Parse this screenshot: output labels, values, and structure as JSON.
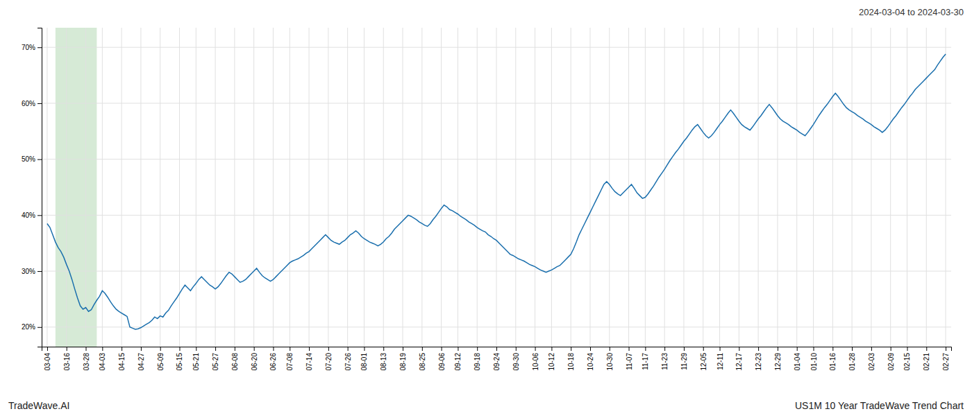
{
  "chart_data": {
    "type": "line",
    "title": "2024-03-04 to 2024-03-30",
    "annotations": [
      "TradeWave.AI",
      "US1M 10 Year TradeWave Trend Chart"
    ],
    "color": "#1a6fad",
    "grid": true,
    "ylim": [
      0.165,
      0.735
    ],
    "yticks": [
      {
        "value": 0.2,
        "label": "20%"
      },
      {
        "value": 0.3,
        "label": "30%"
      },
      {
        "value": 0.4,
        "label": "40%"
      },
      {
        "value": 0.5,
        "label": "50%"
      },
      {
        "value": 0.6,
        "label": "60%"
      },
      {
        "value": 0.7,
        "label": "70%"
      }
    ],
    "highlight": {
      "start": 3,
      "end": 18,
      "color": "#d6ead6"
    },
    "categories": [
      "03-04",
      null,
      null,
      null,
      null,
      null,
      null,
      "03-16",
      null,
      null,
      null,
      null,
      null,
      null,
      "03-28",
      null,
      null,
      null,
      null,
      null,
      "04-03",
      null,
      null,
      null,
      null,
      null,
      null,
      "04-15",
      null,
      null,
      null,
      null,
      null,
      null,
      "04-27",
      null,
      null,
      null,
      null,
      null,
      null,
      "05-09",
      null,
      null,
      null,
      null,
      null,
      null,
      "05-15",
      null,
      null,
      null,
      null,
      null,
      "05-21",
      null,
      null,
      null,
      null,
      null,
      null,
      "05-27",
      null,
      null,
      null,
      null,
      null,
      null,
      "06-08",
      null,
      null,
      null,
      null,
      null,
      null,
      "06-20",
      null,
      null,
      null,
      null,
      null,
      null,
      "06-26",
      null,
      null,
      null,
      null,
      null,
      "07-08",
      null,
      null,
      null,
      null,
      null,
      null,
      "07-14",
      null,
      null,
      null,
      null,
      null,
      null,
      "07-20",
      null,
      null,
      null,
      null,
      null,
      null,
      "07-26",
      null,
      null,
      null,
      null,
      null,
      "08-01",
      null,
      null,
      null,
      null,
      null,
      null,
      "08-13",
      null,
      null,
      null,
      null,
      null,
      null,
      "08-19",
      null,
      null,
      null,
      null,
      null,
      null,
      "08-25",
      null,
      null,
      null,
      null,
      null,
      null,
      "09-06",
      null,
      null,
      null,
      null,
      null,
      "09-12",
      null,
      null,
      null,
      null,
      null,
      null,
      "09-18",
      null,
      null,
      null,
      null,
      null,
      null,
      "09-24",
      null,
      null,
      null,
      null,
      null,
      null,
      "09-30",
      null,
      null,
      null,
      null,
      null,
      null,
      "10-06",
      null,
      null,
      null,
      null,
      null,
      "10-12",
      null,
      null,
      null,
      null,
      null,
      null,
      "10-18",
      null,
      null,
      null,
      null,
      null,
      null,
      "10-24",
      null,
      null,
      null,
      null,
      null,
      null,
      "10-30",
      null,
      null,
      null,
      null,
      null,
      null,
      "11-07",
      null,
      null,
      null,
      null,
      null,
      "11-17",
      null,
      null,
      null,
      null,
      null,
      null,
      "11-23",
      null,
      null,
      null,
      null,
      null,
      null,
      "11-29",
      null,
      null,
      null,
      null,
      null,
      null,
      "12-05",
      null,
      null,
      null,
      null,
      null,
      "12-11",
      null,
      null,
      null,
      null,
      null,
      null,
      "12-17",
      null,
      null,
      null,
      null,
      null,
      null,
      "12-23",
      null,
      null,
      null,
      null,
      null,
      null,
      "12-29",
      null,
      null,
      null,
      null,
      null,
      null,
      "01-04",
      null,
      null,
      null,
      null,
      null,
      "01-10",
      null,
      null,
      null,
      null,
      null,
      null,
      "01-16",
      null,
      null,
      null,
      null,
      null,
      null,
      "01-28",
      null,
      null,
      null,
      null,
      null,
      null,
      "02-03",
      null,
      null,
      null,
      null,
      null,
      null,
      "02-09",
      null,
      null,
      null,
      null,
      null,
      "02-15",
      null,
      null,
      null,
      null,
      null,
      null,
      "02-21",
      null,
      null,
      null,
      null,
      null,
      null,
      "02-27"
    ],
    "values": [
      0.385,
      0.378,
      0.365,
      0.352,
      0.342,
      0.335,
      0.325,
      0.312,
      0.3,
      0.285,
      0.268,
      0.252,
      0.238,
      0.232,
      0.235,
      0.228,
      0.231,
      0.24,
      0.248,
      0.255,
      0.265,
      0.26,
      0.253,
      0.245,
      0.238,
      0.232,
      0.228,
      0.225,
      0.222,
      0.219,
      0.2,
      0.198,
      0.196,
      0.197,
      0.199,
      0.202,
      0.205,
      0.208,
      0.212,
      0.218,
      0.215,
      0.22,
      0.218,
      0.225,
      0.23,
      0.238,
      0.245,
      0.252,
      0.26,
      0.268,
      0.275,
      0.27,
      0.265,
      0.272,
      0.278,
      0.285,
      0.29,
      0.285,
      0.28,
      0.275,
      0.272,
      0.268,
      0.272,
      0.278,
      0.285,
      0.292,
      0.298,
      0.295,
      0.29,
      0.285,
      0.28,
      0.282,
      0.285,
      0.29,
      0.295,
      0.3,
      0.305,
      0.298,
      0.292,
      0.288,
      0.285,
      0.282,
      0.285,
      0.29,
      0.295,
      0.3,
      0.305,
      0.31,
      0.315,
      0.318,
      0.32,
      0.322,
      0.325,
      0.328,
      0.332,
      0.335,
      0.34,
      0.345,
      0.35,
      0.355,
      0.36,
      0.365,
      0.36,
      0.355,
      0.352,
      0.35,
      0.348,
      0.352,
      0.355,
      0.36,
      0.365,
      0.368,
      0.372,
      0.368,
      0.362,
      0.358,
      0.355,
      0.352,
      0.35,
      0.348,
      0.345,
      0.348,
      0.352,
      0.358,
      0.362,
      0.368,
      0.375,
      0.38,
      0.385,
      0.39,
      0.395,
      0.4,
      0.398,
      0.395,
      0.392,
      0.388,
      0.385,
      0.382,
      0.38,
      0.385,
      0.392,
      0.398,
      0.405,
      0.412,
      0.418,
      0.415,
      0.41,
      0.408,
      0.405,
      0.402,
      0.398,
      0.395,
      0.392,
      0.388,
      0.385,
      0.382,
      0.378,
      0.375,
      0.372,
      0.37,
      0.365,
      0.362,
      0.358,
      0.355,
      0.35,
      0.345,
      0.34,
      0.335,
      0.33,
      0.328,
      0.325,
      0.322,
      0.32,
      0.318,
      0.315,
      0.312,
      0.31,
      0.308,
      0.305,
      0.302,
      0.3,
      0.298,
      0.3,
      0.302,
      0.305,
      0.308,
      0.31,
      0.315,
      0.32,
      0.325,
      0.33,
      0.34,
      0.352,
      0.365,
      0.375,
      0.385,
      0.395,
      0.405,
      0.415,
      0.425,
      0.435,
      0.445,
      0.455,
      0.46,
      0.455,
      0.448,
      0.442,
      0.438,
      0.435,
      0.44,
      0.445,
      0.45,
      0.455,
      0.448,
      0.44,
      0.435,
      0.43,
      0.432,
      0.438,
      0.445,
      0.452,
      0.46,
      0.468,
      0.475,
      0.482,
      0.49,
      0.498,
      0.505,
      0.512,
      0.518,
      0.525,
      0.532,
      0.538,
      0.545,
      0.552,
      0.558,
      0.562,
      0.555,
      0.548,
      0.542,
      0.538,
      0.542,
      0.548,
      0.555,
      0.562,
      0.568,
      0.575,
      0.582,
      0.588,
      0.582,
      0.575,
      0.568,
      0.562,
      0.558,
      0.555,
      0.552,
      0.558,
      0.565,
      0.572,
      0.578,
      0.585,
      0.592,
      0.598,
      0.592,
      0.585,
      0.578,
      0.572,
      0.568,
      0.565,
      0.562,
      0.558,
      0.555,
      0.552,
      0.548,
      0.545,
      0.542,
      0.548,
      0.555,
      0.562,
      0.57,
      0.578,
      0.585,
      0.592,
      0.598,
      0.605,
      0.612,
      0.618,
      0.612,
      0.605,
      0.598,
      0.592,
      0.588,
      0.585,
      0.582,
      0.578,
      0.575,
      0.572,
      0.568,
      0.565,
      0.562,
      0.558,
      0.555,
      0.552,
      0.548,
      0.552,
      0.558,
      0.565,
      0.572,
      0.578,
      0.585,
      0.592,
      0.598,
      0.605,
      0.612,
      0.618,
      0.625,
      0.63,
      0.635,
      0.64,
      0.645,
      0.65,
      0.655,
      0.66,
      0.668,
      0.675,
      0.682,
      0.688
    ]
  }
}
